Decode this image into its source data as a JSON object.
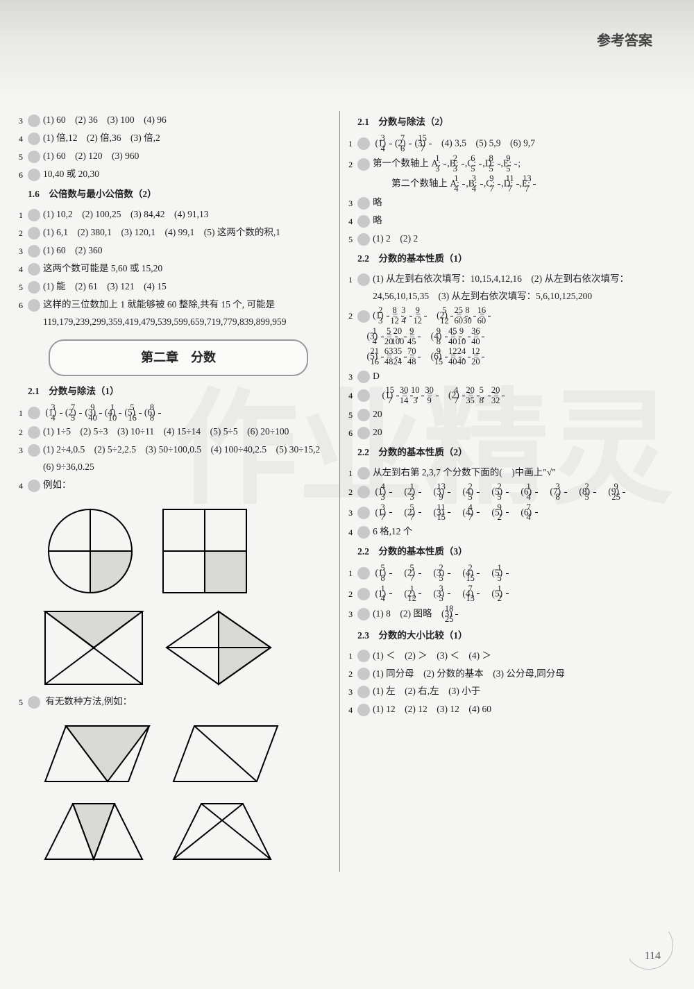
{
  "header": {
    "title": "参考答案"
  },
  "page_number": "114",
  "watermark_text": "作业精灵",
  "chapter_title": "第二章　分数",
  "left_col": {
    "pre_items": [
      {
        "n": "3",
        "text": "(1) 60　(2) 36　(3) 100　(4) 96"
      },
      {
        "n": "4",
        "text": "(1) 倍,12　(2) 倍,36　(3) 倍,2"
      },
      {
        "n": "5",
        "text": "(1) 60　(2) 120　(3) 960"
      },
      {
        "n": "6",
        "text": "10,40 或 20,30"
      }
    ],
    "sec1_6": {
      "head": "1.6　公倍数与最小公倍数（2）",
      "items": [
        {
          "n": "1",
          "text": "(1) 10,2　(2) 100,25　(3) 84,42　(4) 91,13"
        },
        {
          "n": "2",
          "text": "(1) 6,1　(2) 380,1　(3) 120,1　(4) 99,1　(5) 这两个数的积,1"
        },
        {
          "n": "3",
          "text": "(1) 60　(2) 360"
        },
        {
          "n": "4",
          "text": "这两个数可能是 5,60 或 15,20"
        },
        {
          "n": "5",
          "text": "(1) 能　(2) 61　(3) 121　(4) 15"
        },
        {
          "n": "6",
          "text": "这样的三位数加上 1 就能够被 60 整除,共有 15 个, 可能是 119,179,239,299,359,419,479,539,599,659,719,779,839,899,959"
        }
      ]
    },
    "sec2_1_1": {
      "head": "2.1　分数与除法（1）",
      "item1": {
        "n": "1",
        "parts": [
          "(1)",
          "3",
          "4",
          "(2)",
          "7",
          "5",
          "(3)",
          "9",
          "40",
          "(4)",
          "1",
          "10",
          "(5)",
          "5",
          "16",
          "(6)",
          "8",
          "8"
        ]
      },
      "items_rest": [
        {
          "n": "2",
          "text": "(1) 1÷5　(2) 5÷3　(3) 10÷11　(4) 15÷14　(5) 5÷5　(6) 20÷100"
        },
        {
          "n": "3",
          "text": "(1) 2÷4,0.5　(2) 5÷2,2.5　(3) 50÷100,0.5　(4) 100÷40,2.5　(5) 30÷15,2　(6) 9÷36,0.25"
        },
        {
          "n": "4",
          "text": "例如："
        }
      ],
      "item5": {
        "n": "5",
        "text": "有无数种方法,例如："
      }
    },
    "diagrams": {
      "stroke": "#000",
      "fill_shade": "#d9d9d6",
      "svg_size": 140
    }
  },
  "right_col": {
    "sec2_1_2": {
      "head": "2.1　分数与除法（2）",
      "item1_parts": [
        "(1)",
        "3",
        "4",
        "(2)",
        "7",
        "6",
        "(3)",
        "15",
        "7",
        "(4) 3,5",
        "(5) 5,9",
        "(6) 9,7"
      ],
      "item2_lead": "第一个数轴上 A:",
      "item2_fracs1": [
        [
          "1",
          "3"
        ],
        [
          "2",
          "3"
        ],
        [
          "6",
          "5"
        ],
        [
          "8",
          "5"
        ],
        [
          "9",
          "5"
        ]
      ],
      "item2_labels1": [
        "B:",
        "C:",
        "D:",
        "E:"
      ],
      "item2_lead2": "第二个数轴上 A:",
      "item2_fracs2": [
        [
          "1",
          "4"
        ],
        [
          "3",
          "4"
        ],
        [
          "9",
          "7"
        ],
        [
          "11",
          "7"
        ],
        [
          "13",
          "7"
        ]
      ],
      "item2_labels2": [
        "B:",
        "C:",
        "D:",
        "E:"
      ],
      "item3": "略",
      "item4": "略",
      "item5": "(1) 2　(2) 2"
    },
    "sec2_2_1": {
      "head": "2.2　分数的基本性质（1）",
      "item1": "(1) 从左到右依次填写：10,15,4,12,16　(2) 从左到右依次填写：24,56,10,15,35　(3) 从左到右依次填写：5,6,10,125,200",
      "item2_rows": [
        {
          "label": "(1)",
          "eqs": [
            [
              "2",
              "3"
            ],
            [
              "8",
              "12"
            ],
            [
              "3",
              "4"
            ],
            [
              "9",
              "12"
            ]
          ],
          "sep": "(2)",
          "eqs2": [
            [
              "5",
              "12"
            ],
            [
              "25",
              "60"
            ],
            [
              "8",
              "30"
            ],
            [
              "16",
              "60"
            ]
          ]
        },
        {
          "label": "(3)",
          "eqs": [
            [
              "1",
              "4"
            ],
            [
              "5",
              "20"
            ],
            [
              "20",
              "100"
            ],
            [
              "9",
              "45"
            ]
          ],
          "sep": "(4)",
          "eqs2": [
            [
              "9",
              "8"
            ],
            [
              "45",
              "40"
            ],
            [
              "9",
              "10"
            ],
            [
              "36",
              "40"
            ]
          ]
        },
        {
          "label": "(5)",
          "eqs": [
            [
              "21",
              "16"
            ],
            [
              "63",
              "48"
            ],
            [
              "35",
              "24"
            ],
            [
              "70",
              "48"
            ]
          ],
          "sep": "(6)",
          "eqs2": [
            [
              "9",
              "15"
            ],
            [
              "12",
              "40"
            ],
            [
              "24",
              "40"
            ],
            [
              "12",
              "20"
            ]
          ]
        }
      ],
      "item3": "D",
      "item4_parts": [
        "(1)",
        "15",
        "7",
        "=",
        "30",
        "14",
        ",",
        "10",
        "3",
        "=",
        "30",
        "9",
        "(2)",
        "4",
        "7",
        "=",
        "20",
        "35",
        ",",
        "5",
        "8",
        "=",
        "20",
        "32"
      ],
      "item5": "20",
      "item6": "20"
    },
    "sec2_2_2": {
      "head": "2.2　分数的基本性质（2）",
      "item1": "从左到右第 2,3,7 个分数下面的(　)中画上\"√\"",
      "item2_label": "2",
      "item2": [
        "(1)",
        "4",
        "3",
        "(2)",
        "1",
        "3",
        "(3)",
        "13",
        "9",
        "(4)",
        "2",
        "5",
        "(5)",
        "2",
        "5",
        "(6)",
        "1",
        "4",
        "(7)",
        "3",
        "8",
        "(8)",
        "2",
        "5",
        "(9)",
        "9",
        "25"
      ],
      "item3_label": "3",
      "item3": [
        "(1)",
        "3",
        "7",
        "(2)",
        "5",
        "7",
        "(3)",
        "11",
        "15",
        "(4)",
        "4",
        "7",
        "(5)",
        "9",
        "2",
        "(6)",
        "7",
        "4"
      ],
      "item4": "6 格,12 个"
    },
    "sec2_2_3": {
      "head": "2.2　分数的基本性质（3）",
      "item1_label": "1",
      "item1": [
        "(1)",
        "5",
        "8",
        "(2)",
        "5",
        "7",
        "(3)",
        "2",
        "5",
        "(4)",
        "2",
        "15",
        "(5)",
        "1",
        "5"
      ],
      "item2_label": "2",
      "item2": [
        "(1)",
        "1",
        "4",
        "(2)",
        "1",
        "12",
        "(3)",
        "3",
        "5",
        "(4)",
        "7",
        "13",
        "(5)",
        "1",
        "2"
      ],
      "item3_lead": "(1) 8　(2) 图略　(3)",
      "item3_frac": [
        "18",
        "25"
      ]
    },
    "sec2_3": {
      "head": "2.3　分数的大小比较（1）",
      "items": [
        {
          "n": "1",
          "text": "(1) ＜　(2) ＞　(3) ＜　(4) ＞"
        },
        {
          "n": "2",
          "text": "(1) 同分母　(2) 分数的基本　(3) 公分母,同分母"
        },
        {
          "n": "3",
          "text": "(1) 左　(2) 右,左　(3) 小于"
        },
        {
          "n": "4",
          "text": "(1) 12　(2) 12　(3) 12　(4) 60"
        }
      ]
    }
  }
}
